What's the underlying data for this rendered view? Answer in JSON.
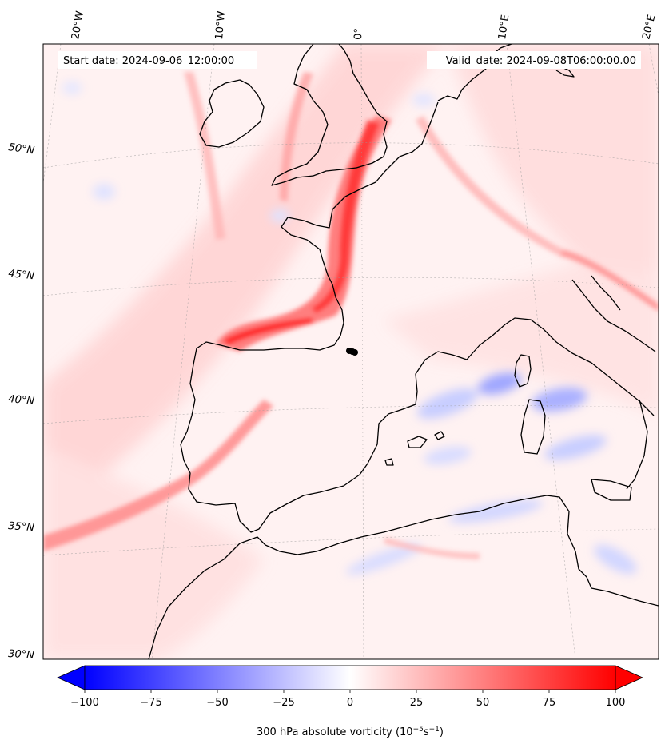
{
  "header": {
    "start_date": "Start date: 2024-09-06_12:00:00",
    "valid_date": "Valid_date: 2024-09-08T06:00:00.00"
  },
  "map": {
    "projection": "conic",
    "lon_labels": [
      "20°W",
      "10°W",
      "0°",
      "10°E",
      "20°E"
    ],
    "lat_labels": [
      "50°N",
      "45°N",
      "40°N",
      "35°N",
      "30°N"
    ],
    "marker": "low-pressure-center"
  },
  "colorbar": {
    "ticks": [
      "−100",
      "−75",
      "−50",
      "−25",
      "0",
      "25",
      "50",
      "75",
      "100"
    ],
    "tick_values": [
      -100,
      -75,
      -50,
      -25,
      0,
      25,
      50,
      75,
      100
    ],
    "min": -100,
    "max": 100,
    "label_main": "300 hPa absolute vorticity (10",
    "label_exp1": "−5",
    "label_mid": "s",
    "label_exp2": "−1",
    "label_end": ")",
    "colors": {
      "neg": "#0000ff",
      "zero": "#ffffff",
      "pos": "#ff0000"
    }
  }
}
